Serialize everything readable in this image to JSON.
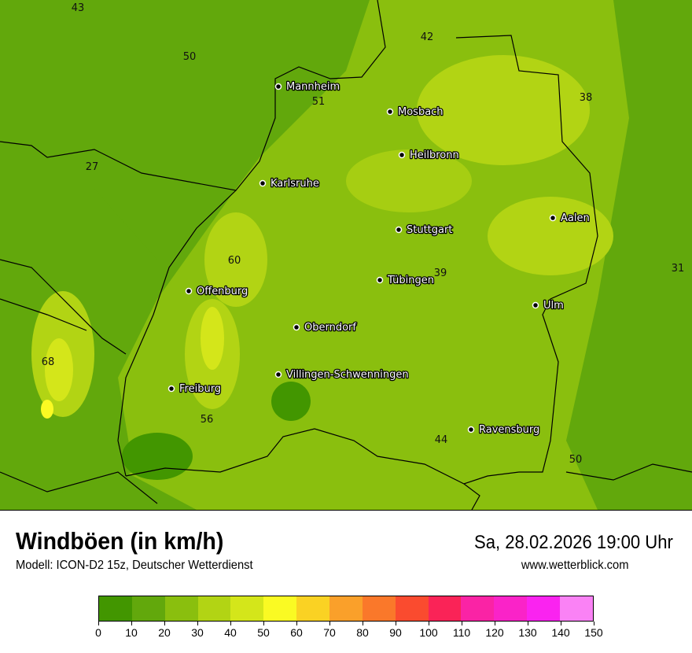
{
  "header": {
    "title": "Windböen (in km/h)",
    "subtitle": "Modell: ICON-D2 15z, Deutscher Wetterdienst",
    "datetime": "Sa, 28.02.2026 19:00 Uhr",
    "website": "www.wetterblick.com"
  },
  "map": {
    "cities": [
      "Mannheim",
      "Mosbach",
      "Heilbronn",
      "Karlsruhe",
      "Stuttgart",
      "Aalen",
      "Tübingen",
      "Ulm",
      "Offenburg",
      "Oberndorf",
      "Villingen-Schwenningen",
      "Freiburg",
      "Ravensburg"
    ],
    "values": [
      "43",
      "42",
      "50",
      "51",
      "38",
      "27",
      "60",
      "39",
      "31",
      "68",
      "56",
      "44",
      "50"
    ]
  },
  "legend": {
    "ticks": [
      "0",
      "10",
      "20",
      "30",
      "40",
      "50",
      "60",
      "70",
      "80",
      "90",
      "100",
      "110",
      "120",
      "130",
      "140",
      "150"
    ],
    "colors": [
      "#429600",
      "#62a80c",
      "#8abf0e",
      "#b2d414",
      "#d4e61a",
      "#fafa23",
      "#fad223",
      "#faa02a",
      "#fa782a",
      "#fa4b2f",
      "#fa2357",
      "#fa23a5",
      "#fa23c8",
      "#fa23f0",
      "#fa82f5"
    ]
  }
}
